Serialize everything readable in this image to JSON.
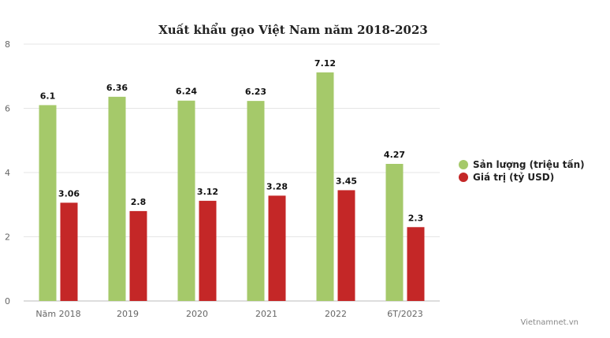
{
  "chart_data": {
    "type": "bar",
    "title": "Xuất khẩu gạo Việt Nam năm 2018-2023",
    "categories": [
      "Năm 2018",
      "2019",
      "2020",
      "2021",
      "2022",
      "6T/2023"
    ],
    "series": [
      {
        "name": "Sản lượng (triệu tấn)",
        "color": "#a5c96a",
        "values": [
          6.1,
          6.36,
          6.24,
          6.23,
          7.12,
          4.27
        ]
      },
      {
        "name": "Giá trị (tỷ USD)",
        "color": "#c42727",
        "values": [
          3.06,
          2.8,
          3.12,
          3.28,
          3.45,
          2.3
        ]
      }
    ],
    "ylim": [
      0,
      8
    ],
    "yticks": [
      0,
      2,
      4,
      6,
      8
    ],
    "grid": true,
    "legend_position": "right"
  },
  "credit": "Vietnamnet.vn"
}
